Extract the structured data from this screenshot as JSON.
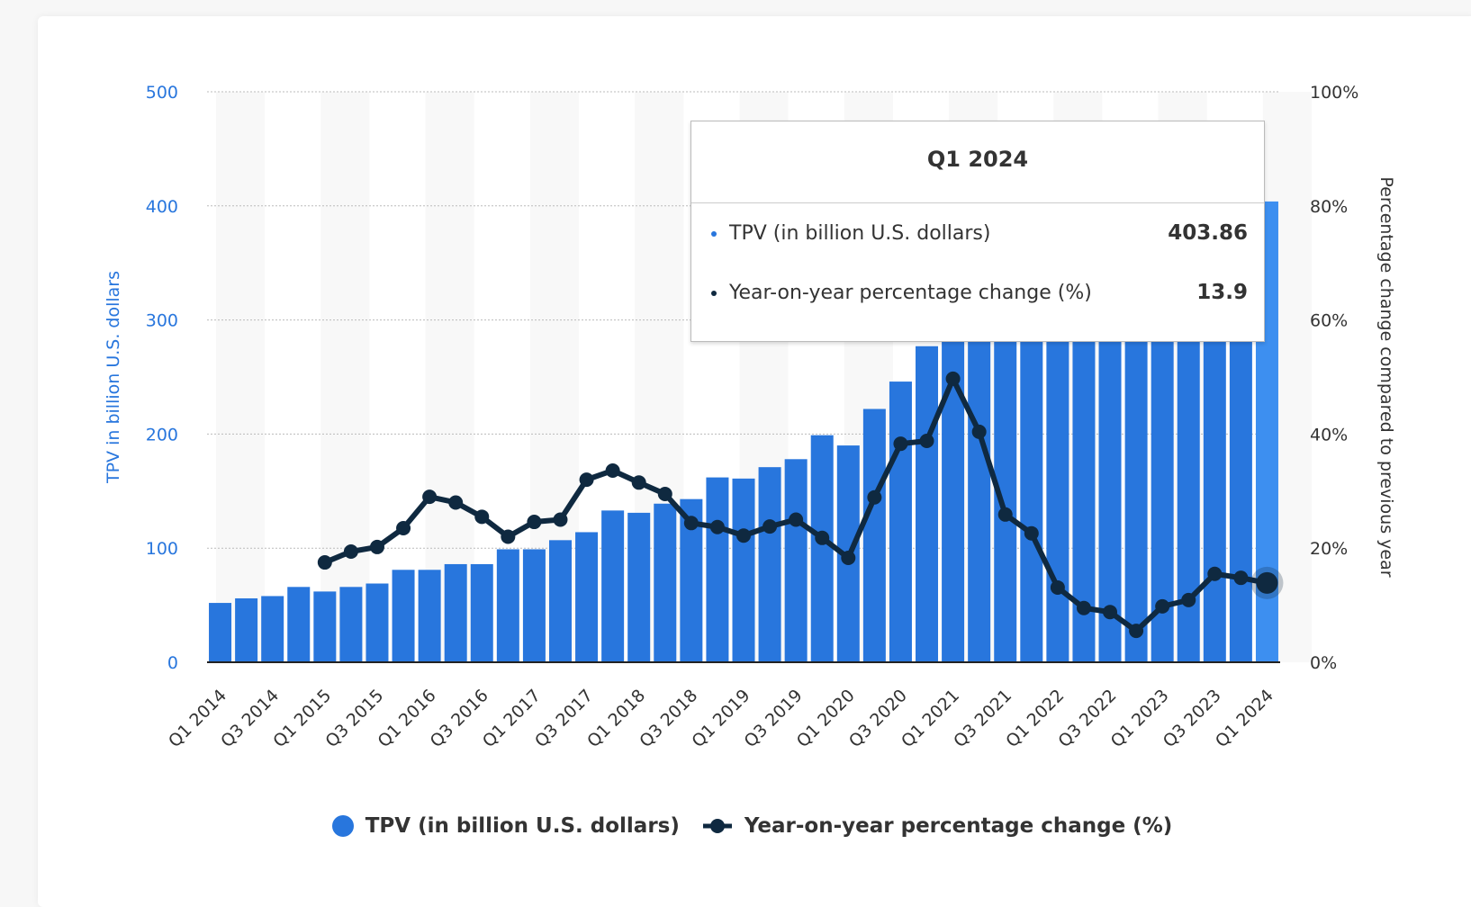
{
  "chart_data": {
    "type": "bar+line",
    "categories": [
      "Q1 2014",
      "Q2 2014",
      "Q3 2014",
      "Q4 2014",
      "Q1 2015",
      "Q2 2015",
      "Q3 2015",
      "Q4 2015",
      "Q1 2016",
      "Q2 2016",
      "Q3 2016",
      "Q4 2016",
      "Q1 2017",
      "Q2 2017",
      "Q3 2017",
      "Q4 2017",
      "Q1 2018",
      "Q2 2018",
      "Q3 2018",
      "Q4 2018",
      "Q1 2019",
      "Q2 2019",
      "Q3 2019",
      "Q4 2019",
      "Q1 2020",
      "Q2 2020",
      "Q3 2020",
      "Q4 2020",
      "Q1 2021",
      "Q2 2021",
      "Q3 2021",
      "Q4 2021",
      "Q1 2022",
      "Q2 2022",
      "Q3 2022",
      "Q4 2022",
      "Q1 2023",
      "Q2 2023",
      "Q3 2023",
      "Q4 2023",
      "Q1 2024"
    ],
    "series": [
      {
        "name": "TPV (in billion U.S. dollars)",
        "type": "bar",
        "axis": "left",
        "color": "#2876dd",
        "values": [
          52,
          56,
          58,
          66,
          62,
          66,
          69,
          81,
          81,
          86,
          86,
          99,
          99,
          107,
          114,
          133,
          131,
          139,
          143,
          162,
          161,
          171,
          178,
          199,
          190,
          222,
          246,
          277,
          285,
          311,
          310,
          340,
          323,
          340,
          337,
          357,
          355,
          377,
          387,
          409,
          403.86
        ]
      },
      {
        "name": "Year-on-year percentage change (%)",
        "type": "line",
        "axis": "right",
        "color": "#0f2940",
        "values": [
          null,
          null,
          null,
          null,
          17.5,
          19.4,
          20.2,
          23.5,
          29,
          28,
          25.5,
          22,
          24.6,
          25,
          32,
          33.6,
          31.5,
          29.5,
          24.4,
          23.7,
          22.2,
          23.8,
          25,
          21.8,
          18.3,
          28.9,
          38.3,
          38.8,
          49.7,
          40.4,
          25.9,
          22.6,
          13.1,
          9.5,
          8.8,
          5.5,
          9.8,
          10.9,
          15.5,
          14.8,
          13.9
        ]
      }
    ],
    "y_left": {
      "label": "TPV in billion U.S. dollars",
      "range": [
        0,
        500
      ],
      "ticks": [
        "0",
        "100",
        "200",
        "300",
        "400",
        "500"
      ]
    },
    "y_right": {
      "label": "Percentage change compared to previous year",
      "range": [
        0,
        100
      ],
      "ticks": [
        "0%",
        "20%",
        "40%",
        "60%",
        "80%",
        "100%"
      ]
    },
    "x_tick_labels": [
      "Q1 2014",
      "Q3 2014",
      "Q1 2015",
      "Q3 2015",
      "Q1 2016",
      "Q3 2016",
      "Q1 2017",
      "Q3 2017",
      "Q1 2018",
      "Q3 2018",
      "Q1 2019",
      "Q3 2019",
      "Q1 2020",
      "Q3 2020",
      "Q1 2021",
      "Q3 2021",
      "Q1 2022",
      "Q3 2022",
      "Q1 2023",
      "Q3 2023",
      "Q1 2024"
    ],
    "grid": true,
    "legend": "bottom"
  },
  "tooltip": {
    "title": "Q1 2024",
    "rows": [
      {
        "label": "TPV (in billion U.S. dollars)",
        "value": "403.86",
        "color": "#2876dd"
      },
      {
        "label": "Year-on-year percentage change (%)",
        "value": "13.9",
        "color": "#0f2940"
      }
    ]
  },
  "legend": {
    "items": [
      "TPV (in billion U.S. dollars)",
      "Year-on-year percentage change (%)"
    ]
  }
}
